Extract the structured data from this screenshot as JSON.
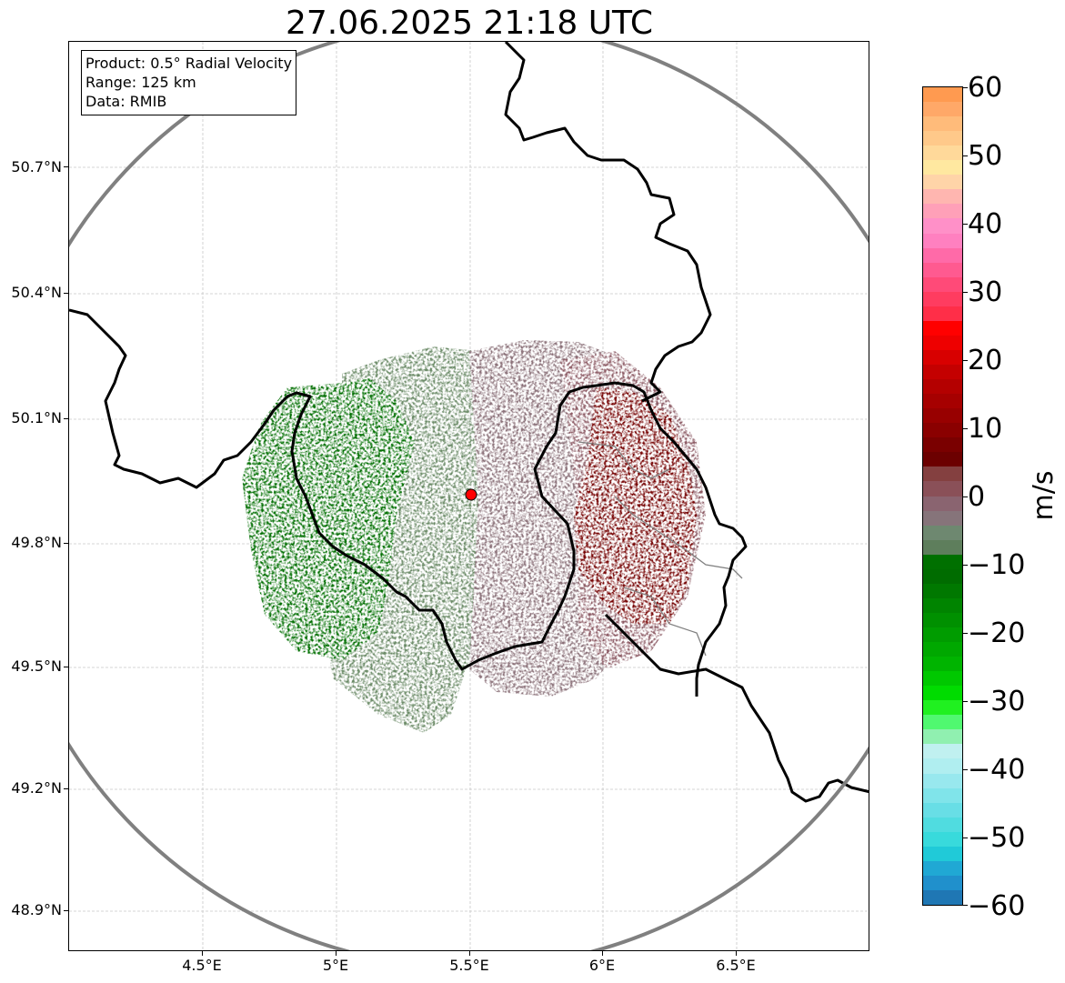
{
  "title": "27.06.2025 21:18 UTC",
  "info": {
    "product": "Product: 0.5° Radial Velocity",
    "range": "Range: 125 km",
    "data": "Data: RMIB"
  },
  "axes": {
    "lat_ticks": [
      "50.7°N",
      "50.4°N",
      "50.1°N",
      "49.8°N",
      "49.5°N",
      "49.2°N",
      "48.9°N"
    ],
    "lon_ticks": [
      "4.5°E",
      "5°E",
      "5.5°E",
      "6°E",
      "6.5°E"
    ],
    "lon_range": [
      4.0,
      7.0
    ],
    "lat_range": [
      48.8,
      51.0
    ]
  },
  "radar": {
    "site_lon": 5.505,
    "site_lat": 49.914,
    "site_color": "#ff0000",
    "range_ring_color": "#808080"
  },
  "colorbar": {
    "label": "m/s",
    "ticks": [
      "60",
      "50",
      "40",
      "30",
      "20",
      "10",
      "0",
      "−10",
      "−20",
      "−30",
      "−40",
      "−50",
      "−60"
    ],
    "range": [
      -60,
      60
    ],
    "colors_top_to_bottom": [
      "#ff9a50",
      "#ffa868",
      "#ffbb7a",
      "#ffc98a",
      "#ffd99a",
      "#ffe8a0",
      "#ffd4a8",
      "#ffb6b0",
      "#ffa0b8",
      "#ff90c8",
      "#ff80c0",
      "#ff6aa8",
      "#ff5a90",
      "#ff4a78",
      "#ff3c60",
      "#ff2e48",
      "#ff0000",
      "#ee0000",
      "#d80000",
      "#c40000",
      "#b40000",
      "#a60000",
      "#980000",
      "#8a0000",
      "#7a0000",
      "#6c0000",
      "#844040",
      "#8a5058",
      "#8a6470",
      "#86747a",
      "#6e8870",
      "#5e7e5c",
      "#007000",
      "#006c00",
      "#007800",
      "#008400",
      "#009000",
      "#009c00",
      "#00a800",
      "#00b400",
      "#00c800",
      "#00dc00",
      "#20f020",
      "#50f870",
      "#90f0b0",
      "#c0f0f0",
      "#b0eef0",
      "#98e8ee",
      "#80e4ea",
      "#68dee6",
      "#50dce0",
      "#38dadc",
      "#20cad8",
      "#20a8d4",
      "#2090cc",
      "#1f77b4"
    ]
  },
  "map_colors": {
    "border": "#000000",
    "inner_boundary": "#808080",
    "green_strong": "#006e00",
    "green_mid": "#3d7a3a",
    "grey_green": "#6a8a66",
    "grey_pink": "#8a7078",
    "pink": "#8c5a64",
    "dark_red": "#740000"
  }
}
